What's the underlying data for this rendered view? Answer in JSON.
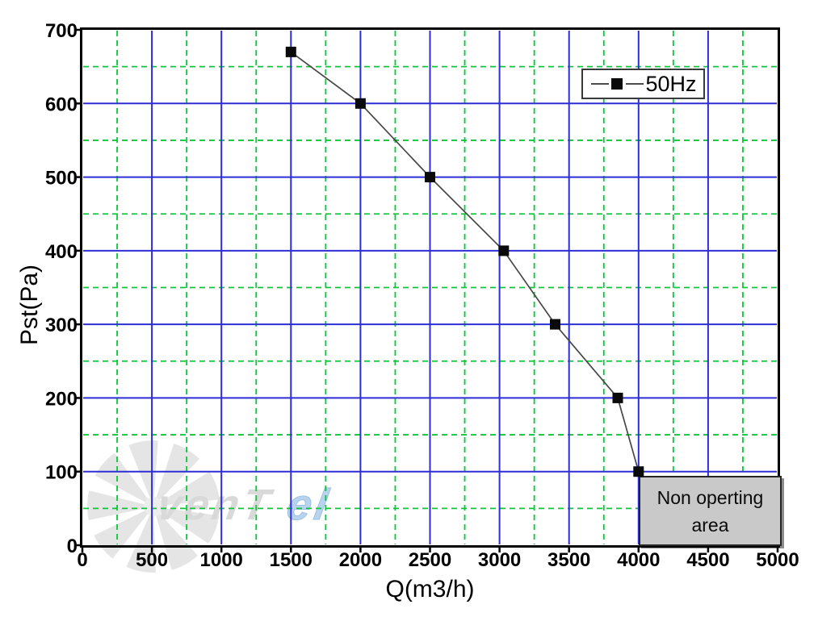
{
  "axes": {
    "x_title": "Q(m3/h)",
    "y_title": "Pst(Pa)"
  },
  "legend": {
    "label": "50Hz"
  },
  "annotation": {
    "line1": "Non operting",
    "line2": "area"
  },
  "watermark": {
    "part1": "venT",
    "part2": "el"
  },
  "chart_data": {
    "type": "line",
    "title": "",
    "xlabel": "Q(m3/h)",
    "ylabel": "Pst(Pa)",
    "xlim": [
      0,
      5000
    ],
    "ylim": [
      0,
      700
    ],
    "x_ticks": [
      0,
      500,
      1000,
      1500,
      2000,
      2500,
      3000,
      3500,
      4000,
      4500,
      5000
    ],
    "y_ticks": [
      0,
      100,
      200,
      300,
      400,
      500,
      600,
      700
    ],
    "x_minor_step": 250,
    "y_minor_step": 50,
    "grid": {
      "major_color": "#2e2ed6",
      "minor_color": "#00cc33",
      "minor_style": "dashed",
      "grid_on": true
    },
    "legend_position": "top-right-inside",
    "series": [
      {
        "name": "50Hz",
        "line_color": "#474747",
        "marker": "square",
        "marker_color": "#0a0a0a",
        "points": [
          [
            1500,
            670
          ],
          [
            2000,
            600
          ],
          [
            2500,
            500
          ],
          [
            3030,
            400
          ],
          [
            3400,
            300
          ],
          [
            3850,
            200
          ],
          [
            4000,
            100
          ]
        ]
      }
    ],
    "annotations": [
      {
        "text": "Non operting area",
        "x_range": [
          4000,
          5000
        ],
        "y_range": [
          0,
          100
        ],
        "fill": "#c9c9c9"
      }
    ]
  },
  "colors": {
    "spine": "#000000",
    "tick_label": "#000000",
    "watermark_gray": "#d9d9d9",
    "watermark_blue": "#b7d3ee",
    "fan_gray": "#e5e5e5"
  }
}
